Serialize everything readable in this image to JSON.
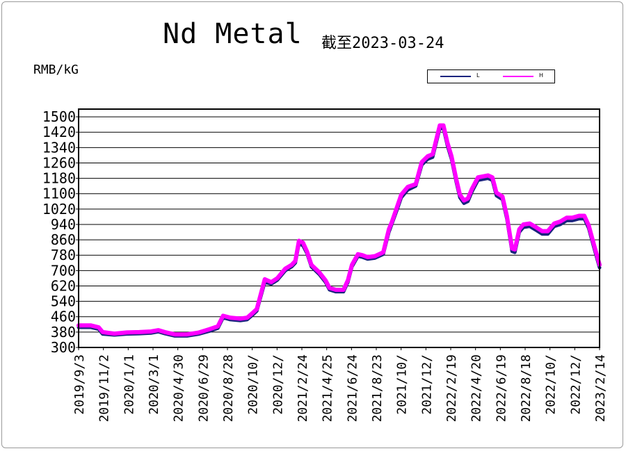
{
  "header": {
    "title": "Nd Metal",
    "subtitle": "截至2023-03-24",
    "unit": "RMB/kG"
  },
  "colors": {
    "series_L": "#1a237e",
    "series_H": "#ff00ff",
    "grid": "#000000",
    "frame_border": "#9a9a9a"
  },
  "chart_data": {
    "type": "line",
    "title": "Nd Metal",
    "subtitle": "截至2023-03-24",
    "ylabel": "RMB/kG",
    "xlabel": "",
    "ylim": [
      300,
      1500
    ],
    "yticks": [
      300,
      380,
      460,
      540,
      620,
      700,
      780,
      860,
      940,
      1020,
      1100,
      1180,
      1260,
      1340,
      1420,
      1500
    ],
    "x_tick_labels": [
      "2019/9/3",
      "2019/11/2",
      "2020/1/1",
      "2020/3/1",
      "2020/4/30",
      "2020/6/29",
      "2020/8/28",
      "2020/10/",
      "2020/12/",
      "2021/2/24",
      "2021/4/25",
      "2021/6/24",
      "2021/8/23",
      "2021/10/",
      "2021/12/",
      "2022/2/19",
      "2022/4/20",
      "2022/6/19",
      "2022/8/18",
      "2022/10/",
      "2022/12/",
      "2023/2/14"
    ],
    "grid": true,
    "legend_position": "top-right",
    "series": [
      {
        "name": "L",
        "color": "#1a237e",
        "x": [
          "2019/9/3",
          "2019/10/3",
          "2019/10/23",
          "2019/11/2",
          "2019/12/1",
          "2020/1/1",
          "2020/2/1",
          "2020/3/1",
          "2020/3/20",
          "2020/4/5",
          "2020/4/30",
          "2020/5/30",
          "2020/6/29",
          "2020/7/25",
          "2020/8/15",
          "2020/8/28",
          "2020/9/15",
          "2020/10/10",
          "2020/10/27",
          "2020/11/10",
          "2020/11/20",
          "2020/12/10",
          "2020/12/26",
          "2021/1/10",
          "2021/1/30",
          "2021/2/15",
          "2021/2/24",
          "2021/3/5",
          "2021/3/15",
          "2021/3/25",
          "2021/4/5",
          "2021/4/25",
          "2021/5/10",
          "2021/5/20",
          "2021/6/5",
          "2021/6/24",
          "2021/7/5",
          "2021/7/15",
          "2021/7/30",
          "2021/8/10",
          "2021/8/23",
          "2021/9/10",
          "2021/10/1",
          "2021/10/15",
          "2021/10/22",
          "2021/11/5",
          "2021/11/15",
          "2021/12/1",
          "2021/12/21",
          "2022/1/5",
          "2022/1/20",
          "2022/2/1",
          "2022/2/19",
          "2022/2/28",
          "2022/3/10",
          "2022/3/20",
          "2022/4/1",
          "2022/4/10",
          "2022/4/20",
          "2022/4/30",
          "2022/5/10",
          "2022/5/25",
          "2022/6/19",
          "2022/6/30",
          "2022/7/10",
          "2022/7/25",
          "2022/8/5",
          "2022/8/18",
          "2022/8/25",
          "2022/9/5",
          "2022/9/15",
          "2022/10/1",
          "2022/10/17",
          "2022/11/1",
          "2022/11/15",
          "2022/12/1",
          "2022/12/16",
          "2023/1/1",
          "2023/1/15",
          "2023/2/1",
          "2023/2/14",
          "2023/2/25",
          "2023/3/10",
          "2023/3/24"
        ],
        "y": [
          405,
          405,
          395,
          370,
          365,
          370,
          372,
          375,
          382,
          372,
          360,
          360,
          370,
          385,
          400,
          455,
          445,
          440,
          445,
          470,
          490,
          640,
          630,
          650,
          700,
          720,
          740,
          840,
          830,
          790,
          720,
          680,
          640,
          600,
          590,
          590,
          640,
          720,
          775,
          770,
          760,
          765,
          785,
          900,
          940,
          1020,
          1080,
          1120,
          1140,
          1250,
          1280,
          1290,
          1440,
          1440,
          1350,
          1280,
          1160,
          1080,
          1050,
          1060,
          1110,
          1170,
          1180,
          1170,
          1090,
          1070,
          970,
          800,
          795,
          900,
          925,
          930,
          910,
          890,
          890,
          930,
          940,
          960,
          960,
          970,
          970,
          920,
          820,
          715
        ]
      },
      {
        "name": "H",
        "color": "#ff00ff",
        "x": [
          "2019/9/3",
          "2019/10/3",
          "2019/10/23",
          "2019/11/2",
          "2019/12/1",
          "2020/1/1",
          "2020/2/1",
          "2020/3/1",
          "2020/3/20",
          "2020/4/5",
          "2020/4/30",
          "2020/5/30",
          "2020/6/29",
          "2020/7/25",
          "2020/8/15",
          "2020/8/28",
          "2020/9/15",
          "2020/10/10",
          "2020/10/27",
          "2020/11/10",
          "2020/11/20",
          "2020/12/10",
          "2020/12/26",
          "2021/1/10",
          "2021/1/30",
          "2021/2/15",
          "2021/2/24",
          "2021/3/5",
          "2021/3/15",
          "2021/3/25",
          "2021/4/5",
          "2021/4/25",
          "2021/5/10",
          "2021/5/20",
          "2021/6/5",
          "2021/6/24",
          "2021/7/5",
          "2021/7/15",
          "2021/7/30",
          "2021/8/10",
          "2021/8/23",
          "2021/9/10",
          "2021/10/1",
          "2021/10/15",
          "2021/10/22",
          "2021/11/5",
          "2021/11/15",
          "2021/12/1",
          "2021/12/21",
          "2022/1/5",
          "2022/1/20",
          "2022/2/1",
          "2022/2/19",
          "2022/2/28",
          "2022/3/10",
          "2022/3/20",
          "2022/4/1",
          "2022/4/10",
          "2022/4/20",
          "2022/4/30",
          "2022/5/10",
          "2022/5/25",
          "2022/6/19",
          "2022/6/30",
          "2022/7/10",
          "2022/7/25",
          "2022/8/5",
          "2022/8/18",
          "2022/8/25",
          "2022/9/5",
          "2022/9/15",
          "2022/10/1",
          "2022/10/17",
          "2022/11/1",
          "2022/11/15",
          "2022/12/1",
          "2022/12/16",
          "2023/1/1",
          "2023/1/15",
          "2023/2/1",
          "2023/2/14",
          "2023/2/25",
          "2023/3/10",
          "2023/3/24"
        ],
        "y": [
          415,
          415,
          405,
          380,
          372,
          378,
          380,
          383,
          390,
          380,
          368,
          368,
          378,
          395,
          410,
          465,
          455,
          450,
          455,
          480,
          500,
          655,
          640,
          660,
          710,
          730,
          750,
          855,
          845,
          800,
          730,
          690,
          650,
          610,
          600,
          600,
          650,
          730,
          785,
          780,
          770,
          775,
          795,
          915,
          950,
          1035,
          1095,
          1135,
          1150,
          1265,
          1295,
          1305,
          1455,
          1455,
          1365,
          1295,
          1175,
          1095,
          1065,
          1075,
          1125,
          1185,
          1195,
          1185,
          1105,
          1085,
          985,
          815,
          810,
          915,
          940,
          945,
          925,
          905,
          905,
          945,
          955,
          975,
          975,
          985,
          985,
          935,
          835,
          730
        ]
      }
    ]
  },
  "legend": {
    "items": [
      {
        "label": "L",
        "color": "#1a237e"
      },
      {
        "label": "H",
        "color": "#ff00ff"
      }
    ]
  }
}
